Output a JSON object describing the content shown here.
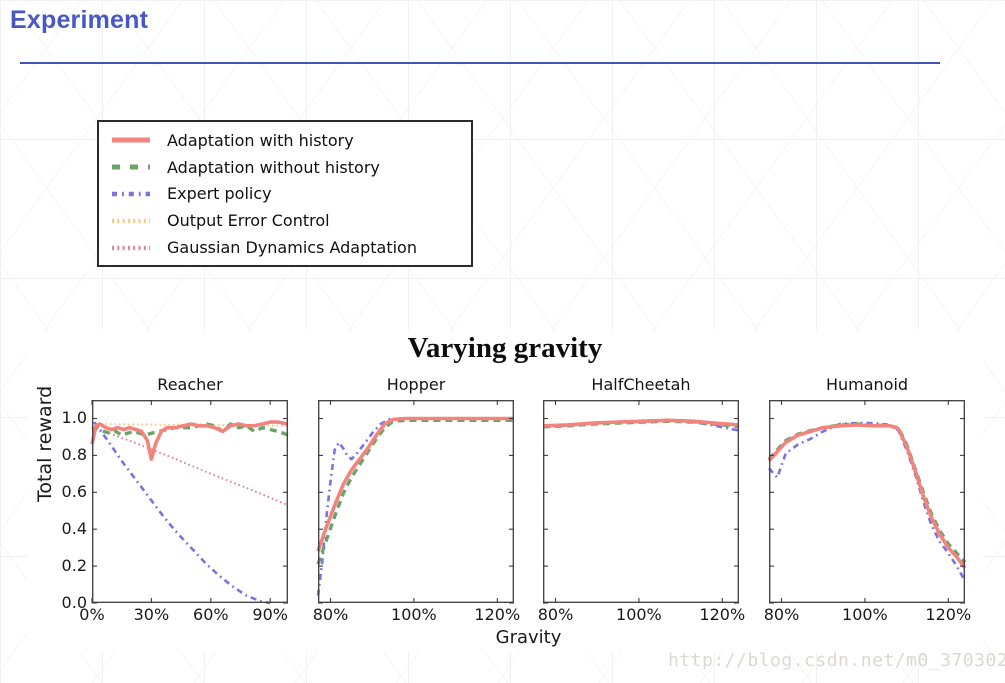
{
  "page": {
    "heading": "Experiment",
    "watermark": "http://blog.csdn.net/m0_37030242"
  },
  "colors": {
    "heading_text": "#4758c4",
    "heading_rule": "#4156b8",
    "axis": "#3c3c3c"
  },
  "chart_data": {
    "type": "line",
    "title": "Varying gravity",
    "xlabel": "Gravity",
    "ylabel": "Total reward",
    "ylim": [
      0,
      1.1
    ],
    "yticks": [
      0.0,
      0.2,
      0.4,
      0.6,
      0.8,
      1.0
    ],
    "ytick_labels": [
      "0.0",
      "0.2",
      "0.4",
      "0.6",
      "0.8",
      "1.0"
    ],
    "grid": false,
    "legend_location": "separate box, upper-left of page",
    "legend": [
      {
        "label": "Adaptation with history",
        "color": "#f2837d",
        "style": "solid",
        "width": 3.6
      },
      {
        "label": "Adaptation without history",
        "color": "#69a569",
        "style": "dashed",
        "width": 3.4
      },
      {
        "label": "Expert policy",
        "color": "#7b72e4",
        "style": "dashdot",
        "width": 2.6
      },
      {
        "label": "Output Error Control",
        "color": "#f6c97e",
        "style": "dotted",
        "width": 2.0
      },
      {
        "label": "Gaussian Dynamics Adaptation",
        "color": "#d98794",
        "style": "dotted",
        "width": 2.0
      }
    ],
    "subplots": [
      {
        "title": "Reacher",
        "xlim": [
          0,
          99
        ],
        "xticks": [
          0,
          30,
          60,
          90
        ],
        "xtick_labels": [
          "0%",
          "30%",
          "60%",
          "90%"
        ],
        "show_ytick_labels": true,
        "series": [
          {
            "name": "Output Error Control",
            "x": [
              0,
              99
            ],
            "y": [
              0.97,
              0.96
            ]
          },
          {
            "name": "Gaussian Dynamics Adaptation",
            "x": [
              0,
              20,
              40,
              60,
              80,
              99
            ],
            "y": [
              0.955,
              0.875,
              0.79,
              0.7,
              0.615,
              0.53
            ]
          },
          {
            "name": "Expert policy",
            "x": [
              1,
              8,
              15,
              22,
              29,
              36,
              43,
              50,
              57,
              64,
              71,
              78,
              85,
              90
            ],
            "y": [
              0.98,
              0.88,
              0.77,
              0.67,
              0.57,
              0.47,
              0.38,
              0.3,
              0.22,
              0.15,
              0.09,
              0.04,
              0.01,
              0.0
            ]
          },
          {
            "name": "Adaptation without history",
            "x": [
              0,
              3,
              6,
              9,
              12,
              15,
              18,
              21,
              24,
              27,
              30,
              34,
              38,
              42,
              46,
              50,
              54,
              58,
              62,
              66,
              70,
              74,
              78,
              82,
              86,
              90,
              94,
              99
            ],
            "y": [
              0.94,
              0.95,
              0.93,
              0.92,
              0.93,
              0.91,
              0.92,
              0.93,
              0.92,
              0.91,
              0.92,
              0.93,
              0.94,
              0.95,
              0.95,
              0.95,
              0.96,
              0.97,
              0.96,
              0.93,
              0.97,
              0.95,
              0.96,
              0.93,
              0.95,
              0.94,
              0.93,
              0.91
            ]
          },
          {
            "name": "Adaptation with history",
            "x": [
              0,
              2,
              4,
              7,
              10,
              13,
              16,
              19,
              22,
              25,
              28,
              30,
              32,
              35,
              38,
              42,
              46,
              50,
              54,
              58,
              62,
              66,
              70,
              74,
              78,
              82,
              86,
              90,
              94,
              99
            ],
            "y": [
              0.86,
              0.96,
              0.97,
              0.95,
              0.94,
              0.95,
              0.94,
              0.95,
              0.94,
              0.93,
              0.88,
              0.78,
              0.86,
              0.93,
              0.95,
              0.95,
              0.96,
              0.97,
              0.96,
              0.96,
              0.95,
              0.93,
              0.96,
              0.97,
              0.96,
              0.96,
              0.97,
              0.98,
              0.98,
              0.97
            ]
          }
        ]
      },
      {
        "title": "Hopper",
        "xlim": [
          77,
          124
        ],
        "xticks": [
          80,
          100,
          120
        ],
        "xtick_labels": [
          "80%",
          "100%",
          "120%"
        ],
        "show_ytick_labels": false,
        "series": [
          {
            "name": "Expert policy",
            "x": [
              77,
              78,
              79,
              80,
              81,
              82,
              83,
              84,
              85,
              86,
              88,
              90,
              92,
              94,
              97,
              102,
              110,
              118,
              124
            ],
            "y": [
              0.04,
              0.22,
              0.46,
              0.66,
              0.83,
              0.87,
              0.84,
              0.8,
              0.78,
              0.8,
              0.86,
              0.92,
              0.97,
              0.995,
              1.0,
              1.0,
              1.0,
              1.0,
              1.0
            ]
          },
          {
            "name": "Adaptation without history",
            "x": [
              77,
              79,
              81,
              83,
              85,
              87,
              89,
              91,
              93,
              95,
              98,
              102,
              108,
              116,
              124
            ],
            "y": [
              0.21,
              0.34,
              0.47,
              0.59,
              0.68,
              0.75,
              0.82,
              0.89,
              0.95,
              0.985,
              0.99,
              0.99,
              0.99,
              0.99,
              0.99
            ]
          },
          {
            "name": "Adaptation with history",
            "x": [
              77,
              79,
              81,
              83,
              85,
              87,
              89,
              91,
              93,
              95,
              98,
              102,
              108,
              116,
              124
            ],
            "y": [
              0.28,
              0.41,
              0.53,
              0.64,
              0.72,
              0.78,
              0.84,
              0.91,
              0.97,
              0.995,
              1.0,
              1.0,
              1.0,
              1.0,
              1.0
            ]
          }
        ]
      },
      {
        "title": "HalfCheetah",
        "xlim": [
          77,
          124
        ],
        "xticks": [
          80,
          100,
          120
        ],
        "xtick_labels": [
          "80%",
          "100%",
          "120%"
        ],
        "show_ytick_labels": false,
        "series": [
          {
            "name": "Expert policy",
            "x": [
              77,
              83,
              89,
              95,
              101,
              107,
              113,
              118,
              124
            ],
            "y": [
              0.96,
              0.962,
              0.972,
              0.98,
              0.988,
              0.99,
              0.98,
              0.962,
              0.935
            ]
          },
          {
            "name": "Adaptation without history",
            "x": [
              77,
              83,
              89,
              95,
              101,
              107,
              113,
              118,
              124
            ],
            "y": [
              0.955,
              0.96,
              0.97,
              0.975,
              0.98,
              0.985,
              0.98,
              0.97,
              0.955
            ]
          },
          {
            "name": "Adaptation with history",
            "x": [
              77,
              83,
              89,
              95,
              101,
              107,
              113,
              118,
              124
            ],
            "y": [
              0.96,
              0.965,
              0.975,
              0.98,
              0.985,
              0.99,
              0.985,
              0.975,
              0.965
            ]
          }
        ]
      },
      {
        "title": "Humanoid",
        "xlim": [
          77,
          124
        ],
        "xticks": [
          80,
          100,
          120
        ],
        "xtick_labels": [
          "80%",
          "100%",
          "120%"
        ],
        "show_ytick_labels": false,
        "series": [
          {
            "name": "Expert policy",
            "x": [
              77,
              79,
              81,
              84,
              87,
              90,
              94,
              98,
              102,
              106,
              108,
              110,
              112,
              114,
              116,
              118,
              120,
              122,
              124
            ],
            "y": [
              0.73,
              0.68,
              0.81,
              0.86,
              0.89,
              0.93,
              0.97,
              0.975,
              0.975,
              0.965,
              0.935,
              0.83,
              0.7,
              0.55,
              0.42,
              0.33,
              0.27,
              0.2,
              0.12
            ]
          },
          {
            "name": "Adaptation without history",
            "x": [
              77,
              79,
              81,
              84,
              87,
              90,
              94,
              98,
              102,
              106,
              108,
              110,
              112,
              114,
              116,
              118,
              120,
              122,
              124
            ],
            "y": [
              0.78,
              0.83,
              0.88,
              0.915,
              0.935,
              0.95,
              0.965,
              0.97,
              0.965,
              0.96,
              0.95,
              0.86,
              0.73,
              0.6,
              0.48,
              0.39,
              0.32,
              0.27,
              0.22
            ]
          },
          {
            "name": "Adaptation with history",
            "x": [
              77,
              79,
              81,
              84,
              87,
              90,
              94,
              98,
              102,
              106,
              108,
              110,
              112,
              114,
              116,
              118,
              120,
              122,
              124
            ],
            "y": [
              0.77,
              0.82,
              0.87,
              0.91,
              0.93,
              0.95,
              0.96,
              0.965,
              0.96,
              0.96,
              0.945,
              0.85,
              0.72,
              0.58,
              0.46,
              0.37,
              0.3,
              0.25,
              0.19
            ]
          }
        ]
      }
    ]
  }
}
